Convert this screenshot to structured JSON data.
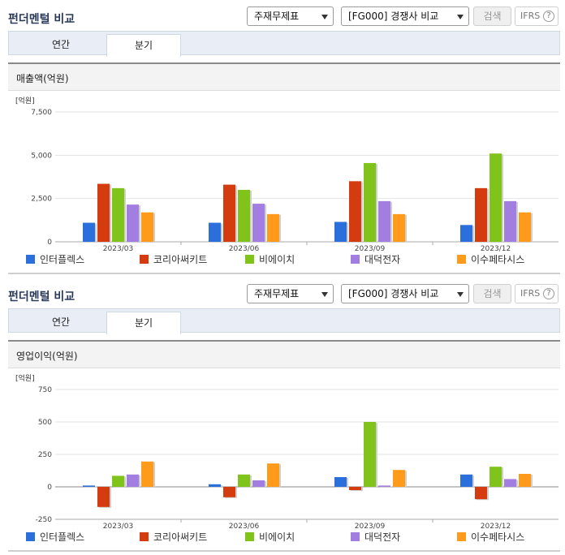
{
  "sections": [
    {
      "title": "펀더멘털 비교",
      "select1": "주재무제표",
      "select2": "[FG000] 경쟁사 비교",
      "search_label": "검색",
      "ifrs_label": "IFRS",
      "ifrs_help": "?",
      "tabs": [
        "연간",
        "분기"
      ],
      "active_tab": "분기",
      "panel_title": "매출액(억원)"
    },
    {
      "title": "펀더멘털 비교",
      "select1": "주재무제표",
      "select2": "[FG000] 경쟁사 비교",
      "search_label": "검색",
      "ifrs_label": "IFRS",
      "ifrs_help": "?",
      "tabs": [
        "연간",
        "분기"
      ],
      "active_tab": "분기",
      "panel_title": "영업이익(억원)"
    }
  ],
  "legend": [
    "인터플렉스",
    "코리아써키트",
    "비에이치",
    "대덕전자",
    "이수페타시스"
  ],
  "colors": [
    "#2a6fdc",
    "#d43b0e",
    "#80c31a",
    "#a27ee0",
    "#ff9a1a"
  ],
  "chart_data": [
    {
      "type": "bar",
      "title": "매출액(억원)",
      "ylabel": "[억원]",
      "categories": [
        "2023/03",
        "2023/06",
        "2023/09",
        "2023/12"
      ],
      "ylim": [
        0,
        7500
      ],
      "yticks": [
        0,
        2500,
        5000,
        7500
      ],
      "ytick_labels": [
        "0",
        "2,500",
        "5,000",
        "7,500"
      ],
      "grid": true,
      "legend_position": "bottom",
      "series": [
        {
          "name": "인터플렉스",
          "values": [
            1100,
            1100,
            1150,
            970
          ]
        },
        {
          "name": "코리아써키트",
          "values": [
            3350,
            3300,
            3500,
            3100
          ]
        },
        {
          "name": "비에이치",
          "values": [
            3100,
            3000,
            4550,
            5100
          ]
        },
        {
          "name": "대덕전자",
          "values": [
            2150,
            2200,
            2350,
            2350
          ]
        },
        {
          "name": "이수페타시스",
          "values": [
            1700,
            1600,
            1600,
            1700
          ]
        }
      ]
    },
    {
      "type": "bar",
      "title": "영업이익(억원)",
      "ylabel": "[억원]",
      "categories": [
        "2023/03",
        "2023/06",
        "2023/09",
        "2023/12"
      ],
      "ylim": [
        -250,
        750
      ],
      "yticks": [
        -250,
        0,
        250,
        500,
        750
      ],
      "ytick_labels": [
        "-250",
        "0",
        "250",
        "500",
        "750"
      ],
      "grid": true,
      "legend_position": "bottom",
      "series": [
        {
          "name": "인터플렉스",
          "values": [
            10,
            20,
            75,
            95
          ]
        },
        {
          "name": "코리아써키트",
          "values": [
            -155,
            -80,
            -25,
            -95
          ]
        },
        {
          "name": "비에이치",
          "values": [
            85,
            95,
            500,
            155
          ]
        },
        {
          "name": "대덕전자",
          "values": [
            95,
            50,
            10,
            60
          ]
        },
        {
          "name": "이수페타시스",
          "values": [
            195,
            180,
            130,
            100
          ]
        }
      ]
    }
  ]
}
